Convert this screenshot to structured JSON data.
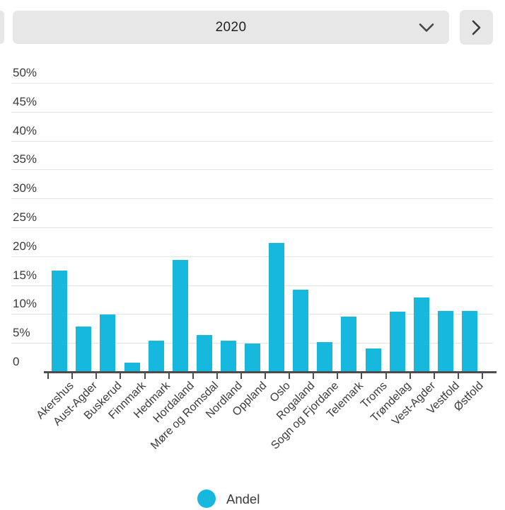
{
  "header": {
    "year_selector": {
      "value": "2020",
      "icon": "chevron-down"
    },
    "next_button": {
      "icon": "chevron-right"
    },
    "prev_button": {
      "note": "partially visible at left edge"
    }
  },
  "legend": {
    "items": [
      {
        "label": "Andel",
        "color": "#16b9dd"
      }
    ]
  },
  "colors": {
    "bar": "#16b9dd",
    "control_background": "#e7e7e7",
    "gridline": "#e4e4e4",
    "axis": "#4d4d4d",
    "text": "#3a3a3a"
  },
  "chart_data": {
    "type": "bar",
    "title": "",
    "xlabel": "",
    "ylabel": "",
    "categories": [
      "Akershus",
      "Aust-Agder",
      "Buskerud",
      "Finnmark",
      "Hedmark",
      "Hordaland",
      "Møre og Romsdal",
      "Nordland",
      "Oppland",
      "Oslo",
      "Rogaland",
      "Sogn og Fjordane",
      "Telemark",
      "Troms",
      "Trøndelag",
      "Vest-Agder",
      "Vestfold",
      "Østfold"
    ],
    "series": [
      {
        "name": "Andel",
        "color": "#16b9dd",
        "values": [
          17.5,
          7.8,
          9.9,
          1.6,
          5.4,
          19.4,
          6.4,
          5.4,
          4.9,
          22.3,
          14.2,
          5.1,
          9.5,
          4.0,
          10.4,
          12.9,
          10.5,
          10.6
        ]
      }
    ],
    "ylim": [
      0,
      50
    ],
    "ytick_step": 5,
    "ytick_labels": [
      "0",
      "5%",
      "10%",
      "15%",
      "20%",
      "25%",
      "30%",
      "35%",
      "40%",
      "45%",
      "50%"
    ],
    "grid": true,
    "x_label_rotation": -45,
    "legend_position": "bottom"
  }
}
